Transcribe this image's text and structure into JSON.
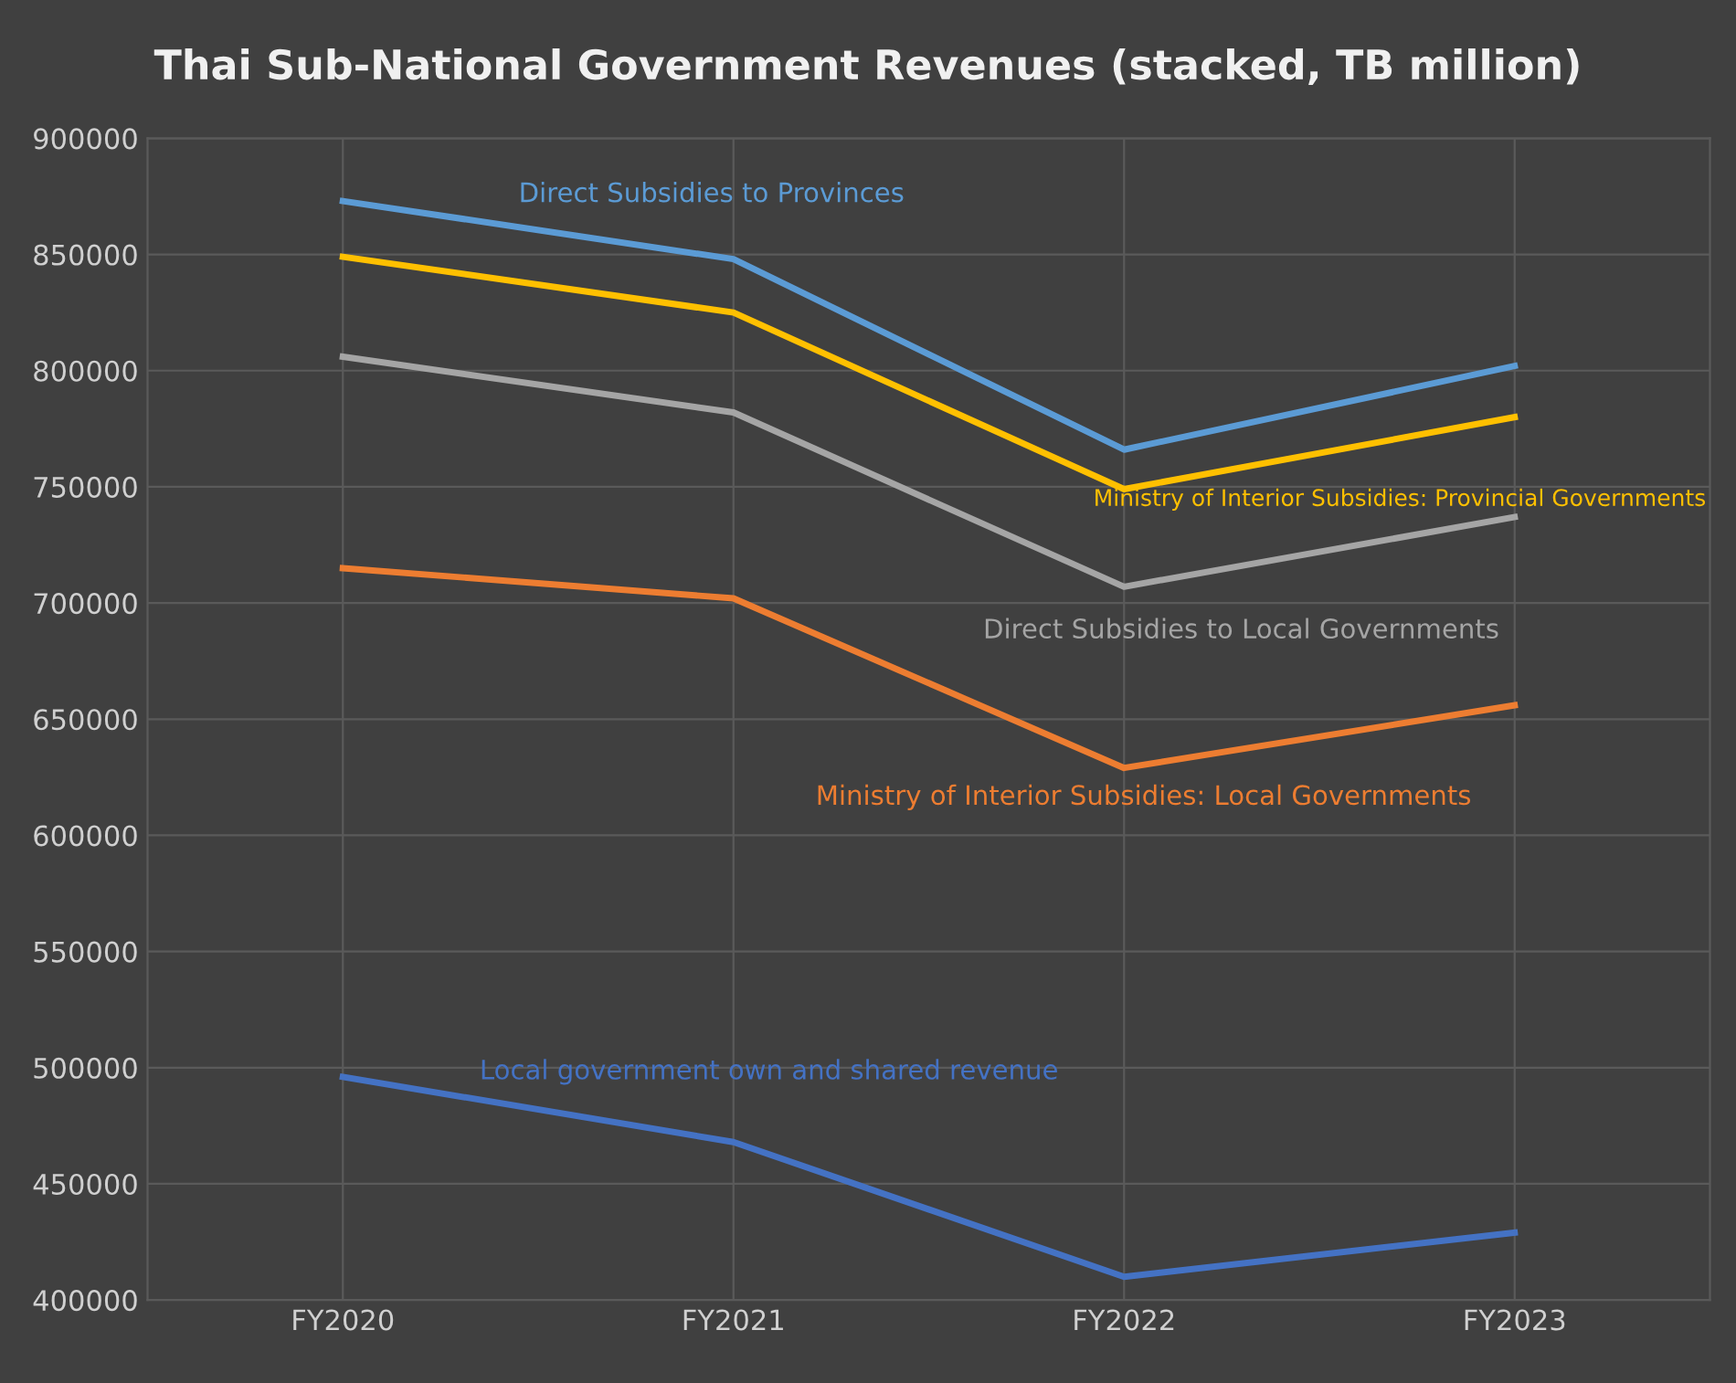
{
  "chart_data": {
    "type": "line",
    "title": "Thai Sub-National Government Revenues (stacked, TB million)",
    "categories": [
      "FY2020",
      "FY2021",
      "FY2022",
      "FY2023"
    ],
    "series": [
      {
        "name": "Direct Subsidies to Provinces",
        "color": "#5b9bd5",
        "values": [
          873000,
          848000,
          766000,
          802000
        ]
      },
      {
        "name": "Ministry of Interior Subsidies: Provincial Governments",
        "color": "#ffc000",
        "values": [
          849000,
          825000,
          749000,
          780000
        ]
      },
      {
        "name": "Direct Subsidies to Local Governments",
        "color": "#a5a5a5",
        "values": [
          806000,
          782000,
          707000,
          737000
        ]
      },
      {
        "name": "Ministry of Interior Subsidies: Local Governments",
        "color": "#ed7d31",
        "values": [
          715000,
          702000,
          629000,
          656000
        ]
      },
      {
        "name": "Local government own and shared revenue",
        "color": "#4472c4",
        "values": [
          496000,
          468000,
          410000,
          429000
        ]
      }
    ],
    "ylim": [
      400000,
      900000
    ],
    "yticks": [
      400000,
      450000,
      500000,
      550000,
      600000,
      650000,
      700000,
      750000,
      800000,
      850000,
      900000
    ],
    "grid": true,
    "legend": false,
    "marker": "none",
    "line_style": "solid"
  }
}
